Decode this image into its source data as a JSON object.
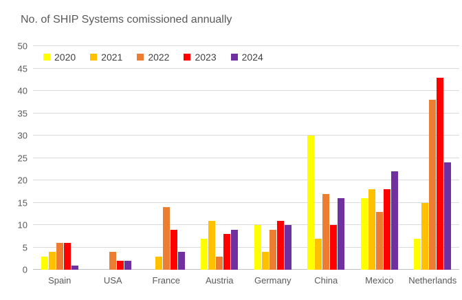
{
  "title": "No. of SHIP Systems comissioned annually",
  "colors": {
    "background": "#FFFFFF",
    "gridline": "#D9D9D9",
    "axis_line": "#BFBFBF",
    "title_text": "#595959",
    "axis_text": "#595959",
    "legend_text": "#404040"
  },
  "chart_data": {
    "type": "bar",
    "title": "No. of SHIP Systems comissioned annually",
    "xlabel": "",
    "ylabel": "",
    "ylim": [
      0,
      50
    ],
    "ytick_step": 5,
    "yticks": [
      0,
      5,
      10,
      15,
      20,
      25,
      30,
      35,
      40,
      45,
      50
    ],
    "grid": true,
    "legend_position": "top",
    "categories": [
      "Spain",
      "USA",
      "France",
      "Austria",
      "Germany",
      "China",
      "Mexico",
      "Netherlands"
    ],
    "series": [
      {
        "name": "2020",
        "color": "#FFFF00",
        "values": [
          3,
          0,
          0,
          7,
          10,
          30,
          16,
          7
        ]
      },
      {
        "name": "2021",
        "color": "#FFC000",
        "values": [
          4,
          0,
          3,
          11,
          4,
          7,
          18,
          15
        ]
      },
      {
        "name": "2022",
        "color": "#ED7D31",
        "values": [
          6,
          4,
          14,
          3,
          9,
          17,
          13,
          38
        ]
      },
      {
        "name": "2023",
        "color": "#FF0000",
        "values": [
          6,
          2,
          9,
          8,
          11,
          10,
          18,
          43
        ]
      },
      {
        "name": "2024",
        "color": "#7030A0",
        "values": [
          1,
          2,
          4,
          9,
          10,
          16,
          22,
          24
        ]
      }
    ]
  }
}
